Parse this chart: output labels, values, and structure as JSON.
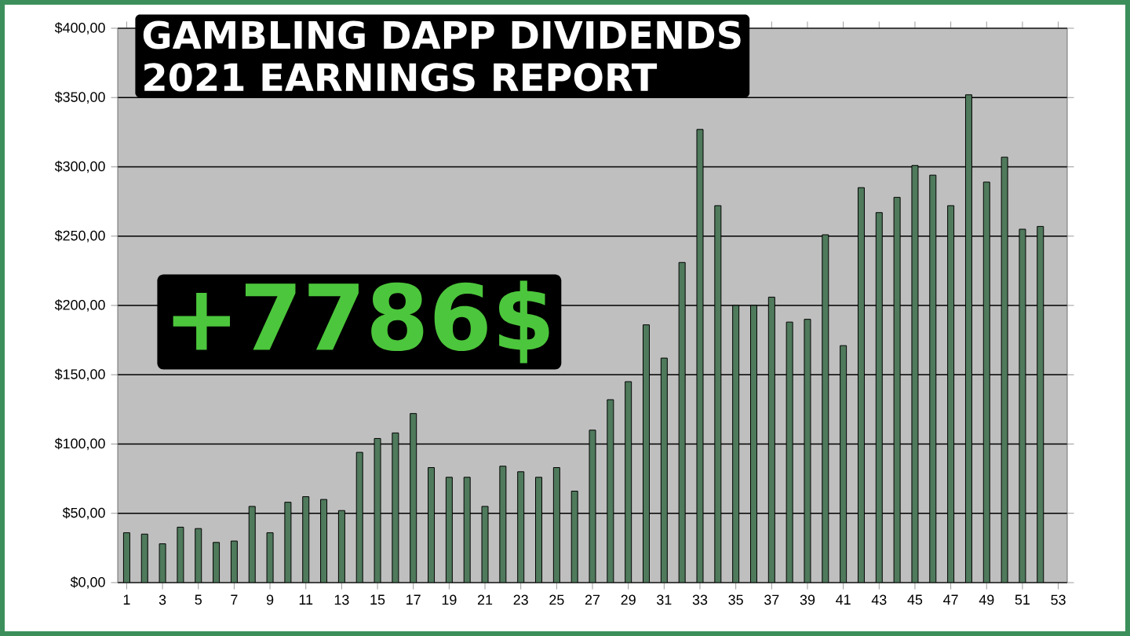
{
  "chart_data": {
    "type": "bar",
    "title": "GAMBLING DAPP DIVIDENDS",
    "subtitle": "2021 EARNINGS REPORT",
    "annotations": [
      "+7786$"
    ],
    "categories": [
      "1",
      null,
      "3",
      null,
      "5",
      null,
      "7",
      null,
      "9",
      null,
      "11",
      null,
      "13",
      null,
      "15",
      null,
      "17",
      null,
      "19",
      null,
      "21",
      null,
      "23",
      null,
      "25",
      null,
      "27",
      null,
      "29",
      null,
      "31",
      null,
      "33",
      null,
      "35",
      null,
      "37",
      null,
      "39",
      null,
      "41",
      null,
      "43",
      null,
      "45",
      null,
      "47",
      null,
      "49",
      null,
      "51",
      null,
      "53"
    ],
    "values": [
      36,
      35,
      28,
      40,
      39,
      29,
      30,
      55,
      36,
      58,
      62,
      60,
      52,
      94,
      104,
      108,
      122,
      83,
      76,
      76,
      55,
      84,
      80,
      76,
      83,
      66,
      110,
      132,
      145,
      186,
      162,
      231,
      327,
      272,
      200,
      200,
      206,
      188,
      190,
      251,
      171,
      285,
      267,
      278,
      301,
      294,
      272,
      352,
      289,
      307,
      255,
      257,
      null
    ],
    "color": "#4f7a5c",
    "ylim": [
      0,
      400
    ],
    "yticks": [
      {
        "value": 0,
        "label": "$0,00"
      },
      {
        "value": 50,
        "label": "$50,00"
      },
      {
        "value": 100,
        "label": "$100,00"
      },
      {
        "value": 150,
        "label": "$150,00"
      },
      {
        "value": 200,
        "label": "$200,00"
      },
      {
        "value": 250,
        "label": "$250,00"
      },
      {
        "value": 300,
        "label": "$300,00"
      },
      {
        "value": 350,
        "label": "$350,00"
      },
      {
        "value": 400,
        "label": "$400,00"
      }
    ],
    "grid": "y"
  }
}
